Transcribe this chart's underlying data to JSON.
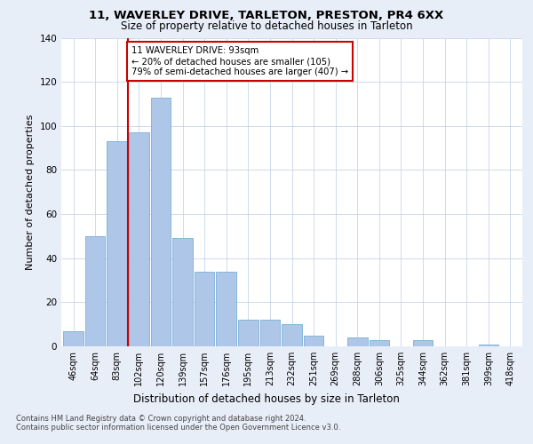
{
  "title1": "11, WAVERLEY DRIVE, TARLETON, PRESTON, PR4 6XX",
  "title2": "Size of property relative to detached houses in Tarleton",
  "xlabel": "Distribution of detached houses by size in Tarleton",
  "ylabel": "Number of detached properties",
  "categories": [
    "46sqm",
    "64sqm",
    "83sqm",
    "102sqm",
    "120sqm",
    "139sqm",
    "157sqm",
    "176sqm",
    "195sqm",
    "213sqm",
    "232sqm",
    "251sqm",
    "269sqm",
    "288sqm",
    "306sqm",
    "325sqm",
    "344sqm",
    "362sqm",
    "381sqm",
    "399sqm",
    "418sqm"
  ],
  "values": [
    7,
    50,
    93,
    97,
    113,
    49,
    34,
    34,
    12,
    12,
    10,
    5,
    0,
    4,
    3,
    0,
    3,
    0,
    0,
    1,
    0
  ],
  "bar_color": "#aec6e8",
  "bar_edge_color": "#7bafd4",
  "vline_x_idx": 2.5,
  "vline_color": "#cc0000",
  "annotation_text": "11 WAVERLEY DRIVE: 93sqm\n← 20% of detached houses are smaller (105)\n79% of semi-detached houses are larger (407) →",
  "annotation_box_color": "#ffffff",
  "annotation_box_edge": "#cc0000",
  "ylim": [
    0,
    140
  ],
  "yticks": [
    0,
    20,
    40,
    60,
    80,
    100,
    120,
    140
  ],
  "footer1": "Contains HM Land Registry data © Crown copyright and database right 2024.",
  "footer2": "Contains public sector information licensed under the Open Government Licence v3.0.",
  "bg_color": "#e8eef8",
  "plot_bg_color": "#ffffff",
  "grid_color": "#c8d4e8",
  "title1_fontsize": 9.5,
  "title2_fontsize": 8.5,
  "ylabel_fontsize": 8,
  "xlabel_fontsize": 8.5,
  "tick_fontsize": 7,
  "annotation_fontsize": 7.2,
  "footer_fontsize": 6
}
